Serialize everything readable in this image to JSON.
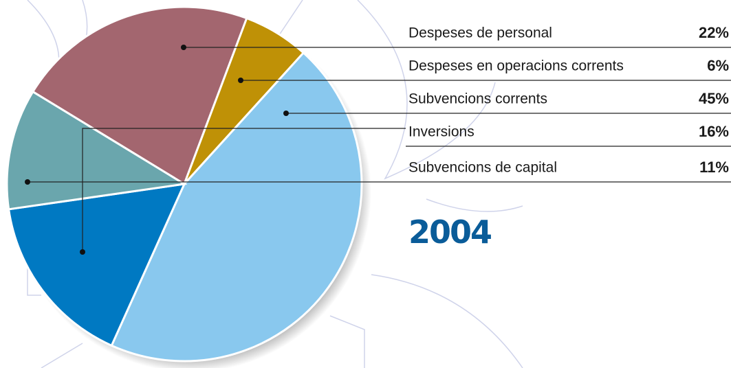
{
  "chart_data": {
    "type": "pie",
    "title": "2004",
    "categories": [
      "Despeses de personal",
      "Despeses en operacions corrents",
      "Subvencions corrents",
      "Inversions",
      "Subvencions de capital"
    ],
    "values": [
      22,
      6,
      45,
      16,
      11
    ],
    "value_labels": [
      "22%",
      "6%",
      "45%",
      "16%",
      "11%"
    ],
    "colors": [
      "#a3666f",
      "#bf9106",
      "#89c8ee",
      "#0079c2",
      "#6aa6ad"
    ]
  }
}
